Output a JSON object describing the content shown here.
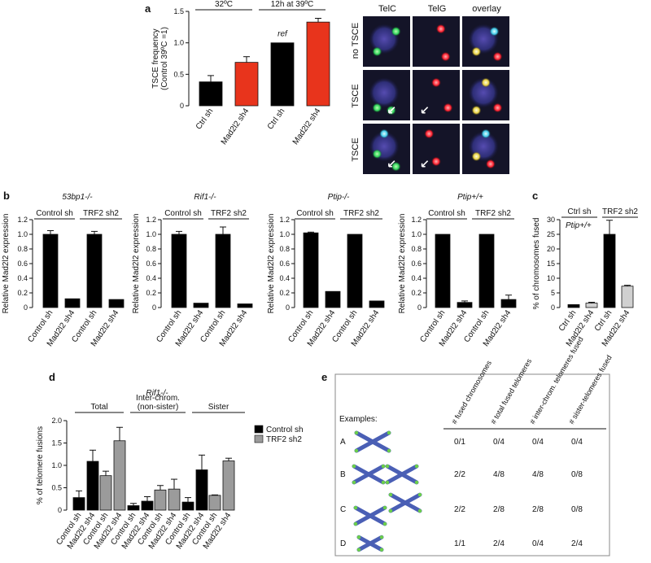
{
  "panel_labels": {
    "a": "a",
    "b": "b",
    "c": "c",
    "d": "d",
    "e": "e"
  },
  "colors": {
    "black": "#000000",
    "red": "#e8341c",
    "grey": "#9b9b9b",
    "light_grey": "#d0d0d0",
    "chromosome": "#4a5fb5",
    "telomere": "#6ccf4a"
  },
  "micrograph": {
    "columns": [
      "TelC",
      "TelG",
      "overlay"
    ],
    "rows": [
      "no TSCE",
      "TSCE",
      "TSCE"
    ]
  },
  "panel_d_title": "Rif1-/-",
  "panel_d_legend": [
    "Control sh",
    "TRF2 sh2"
  ],
  "panel_c_annotation": "Ptip+/+",
  "panel_a_annotation": "ref",
  "chart_data": [
    {
      "id": "a",
      "type": "bar",
      "ylabel": "TSCE frequency\n(Control 39ºC =1)",
      "ylim": [
        0,
        1.5
      ],
      "yticks": [
        "0",
        "0.5",
        "1.0",
        "1.5"
      ],
      "groups": [
        "32ºC",
        "12h at 39ºC"
      ],
      "categories": [
        "Ctrl sh",
        "Mad2l2 sh4",
        "Ctrl sh",
        "Mad2l2 sh4"
      ],
      "values": [
        0.38,
        0.69,
        1.0,
        1.33
      ],
      "errors": [
        0.1,
        0.09,
        0,
        0.06
      ],
      "colors": [
        "#000000",
        "#e8341c",
        "#000000",
        "#e8341c"
      ]
    },
    {
      "id": "b1",
      "type": "bar",
      "title": "53bp1-/-",
      "ylabel": "Relative Mad2l2 expression",
      "ylim": [
        0,
        1.2
      ],
      "yticks": [
        "0",
        "0.2",
        "0.4",
        "0.6",
        "0.8",
        "1.0",
        "1.2"
      ],
      "groups": [
        "Control sh",
        "TRF2 sh2"
      ],
      "categories": [
        "Control sh",
        "Mad2l2 sh4",
        "Control sh",
        "Mad2l2 sh4"
      ],
      "values": [
        1.0,
        0.12,
        1.0,
        0.11
      ],
      "errors": [
        0.05,
        0,
        0.04,
        0
      ]
    },
    {
      "id": "b2",
      "type": "bar",
      "title": "Rif1-/-",
      "ylabel": "Relative Mad2l2 expression",
      "ylim": [
        0,
        1.2
      ],
      "yticks": [
        "0",
        "0.2",
        "0.4",
        "0.6",
        "0.8",
        "1.0",
        "1.2"
      ],
      "groups": [
        "Control sh",
        "TRF2 sh2"
      ],
      "categories": [
        "Control sh",
        "Mad2l2 sh4",
        "Control sh",
        "Mad2l2 sh4"
      ],
      "values": [
        1.0,
        0.06,
        1.0,
        0.05
      ],
      "errors": [
        0.04,
        0,
        0.1,
        0
      ]
    },
    {
      "id": "b3",
      "type": "bar",
      "title": "Ptip-/-",
      "ylabel": "Relative Mad2l2 expression",
      "ylim": [
        0,
        1.2
      ],
      "yticks": [
        "0",
        "0.2",
        "0.4",
        "0.6",
        "0.8",
        "1.0",
        "1.2"
      ],
      "groups": [
        "Control sh",
        "TRF2 sh2"
      ],
      "categories": [
        "Control sh",
        "Mad2l2 sh4",
        "Control sh",
        "Mad2l2 sh4"
      ],
      "values": [
        1.02,
        0.22,
        1.0,
        0.09
      ],
      "errors": [
        0.01,
        0,
        0,
        0
      ]
    },
    {
      "id": "b4",
      "type": "bar",
      "title": "Ptip+/+",
      "ylabel": "Relative Mad2l2 expression",
      "ylim": [
        0,
        1.2
      ],
      "yticks": [
        "0",
        "0.2",
        "0.4",
        "0.6",
        "0.8",
        "1.0",
        "1.2"
      ],
      "groups": [
        "Control sh",
        "TRF2 sh2"
      ],
      "categories": [
        "Control sh",
        "Mad2l2 sh4",
        "Control sh",
        "Mad2l2 sh4"
      ],
      "values": [
        1.0,
        0.07,
        1.0,
        0.11
      ],
      "errors": [
        0,
        0.02,
        0,
        0.06
      ]
    },
    {
      "id": "c",
      "type": "bar",
      "ylabel": "% of chromosomes fused",
      "ylim": [
        0,
        30
      ],
      "yticks": [
        "0",
        "5",
        "10",
        "15",
        "20",
        "25",
        "30"
      ],
      "groups": [
        "Ctrl sh",
        "TRF2 sh2"
      ],
      "categories": [
        "Ctrl sh",
        "Mad2l2 sh4",
        "Ctrl sh",
        "Mad2l2 sh4"
      ],
      "values": [
        1.0,
        1.5,
        25.0,
        7.3
      ],
      "errors": [
        0,
        0.3,
        4.8,
        0.3
      ],
      "colors": [
        "#000000",
        "#d0d0d0",
        "#000000",
        "#d0d0d0"
      ]
    },
    {
      "id": "d",
      "type": "bar",
      "ylabel": "% of telomere fusions",
      "ylim": [
        0,
        2.0
      ],
      "yticks": [
        "0",
        "0.5",
        "1.0",
        "1.5",
        "2.0"
      ],
      "groups": [
        "Total",
        "Inter-chrom.\n(non-sister)",
        "Sister"
      ],
      "categories": [
        "Control sh",
        "Mad2l2 sh4",
        "Control sh",
        "Mad2l2 sh4",
        "Control sh",
        "Mad2l2 sh4",
        "Control sh",
        "Mad2l2 sh4",
        "Control sh",
        "Mad2l2 sh4",
        "Control sh",
        "Mad2l2 sh4"
      ],
      "values": [
        0.28,
        1.09,
        0.77,
        1.55,
        0.1,
        0.2,
        0.45,
        0.47,
        0.18,
        0.9,
        0.33,
        1.1
      ],
      "errors": [
        0.15,
        0.25,
        0.1,
        0.3,
        0.05,
        0.1,
        0.1,
        0.22,
        0.1,
        0.33,
        0.01,
        0.06
      ],
      "colors": [
        "#000000",
        "#000000",
        "#9b9b9b",
        "#9b9b9b",
        "#000000",
        "#000000",
        "#9b9b9b",
        "#9b9b9b",
        "#000000",
        "#000000",
        "#9b9b9b",
        "#9b9b9b"
      ]
    }
  ],
  "panel_e": {
    "examples_label": "Examples:",
    "headers": [
      "# fused chromosomes",
      "# total fused telomeres",
      "# inter-chrom. telomeres fused",
      "# sister-telomeres fused"
    ],
    "rows": [
      {
        "label": "A",
        "values": [
          "0/1",
          "0/4",
          "0/4",
          "0/4"
        ]
      },
      {
        "label": "B",
        "values": [
          "2/2",
          "4/8",
          "4/8",
          "0/8"
        ]
      },
      {
        "label": "C",
        "values": [
          "2/2",
          "2/8",
          "2/8",
          "0/8"
        ]
      },
      {
        "label": "D",
        "values": [
          "1/1",
          "2/4",
          "0/4",
          "2/4"
        ]
      }
    ]
  }
}
